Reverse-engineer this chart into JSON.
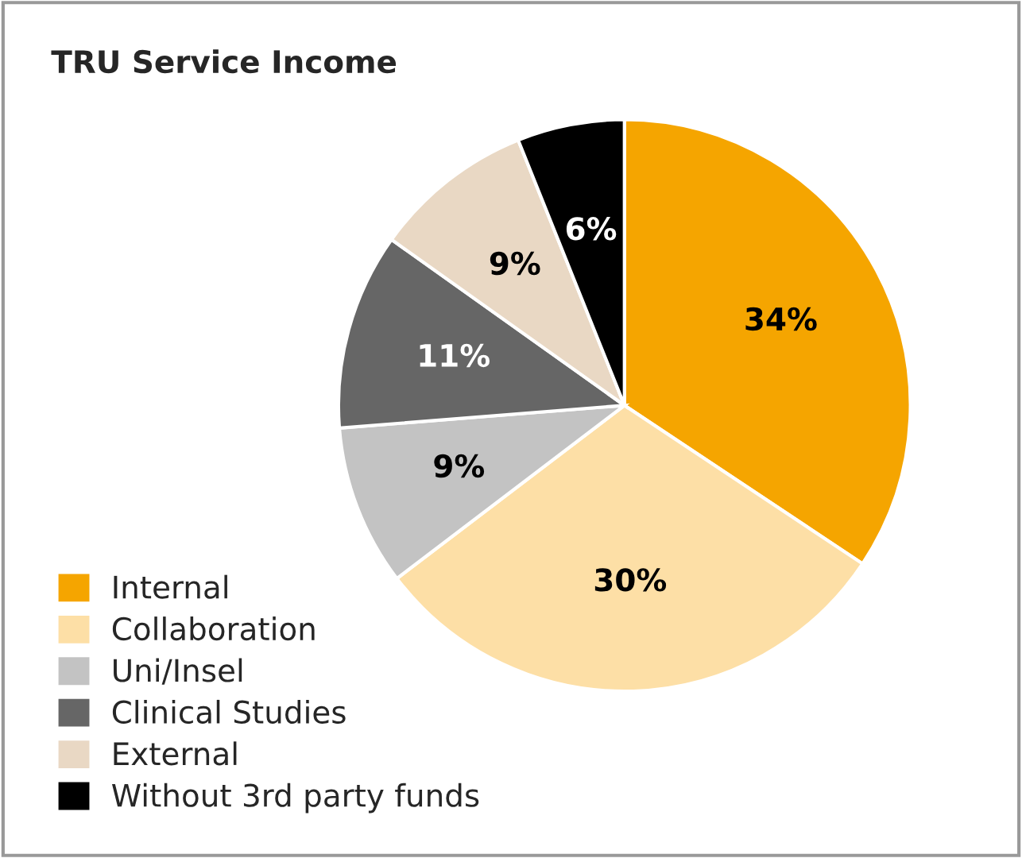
{
  "chart_data": {
    "type": "pie",
    "title": "TRU Service Income",
    "categories": [
      "Internal",
      "Collaboration",
      "Uni/Insel",
      "Clinical Studies",
      "External",
      "Without 3rd party funds"
    ],
    "values": [
      34,
      30,
      9,
      11,
      9,
      6
    ],
    "colors": [
      "#f5a500",
      "#fddfa6",
      "#c3c3c3",
      "#666666",
      "#e9d8c4",
      "#000000"
    ],
    "value_labels": [
      "34%",
      "30%",
      "9%",
      "11%",
      "9%",
      "6%"
    ],
    "legend": "bottom left"
  }
}
